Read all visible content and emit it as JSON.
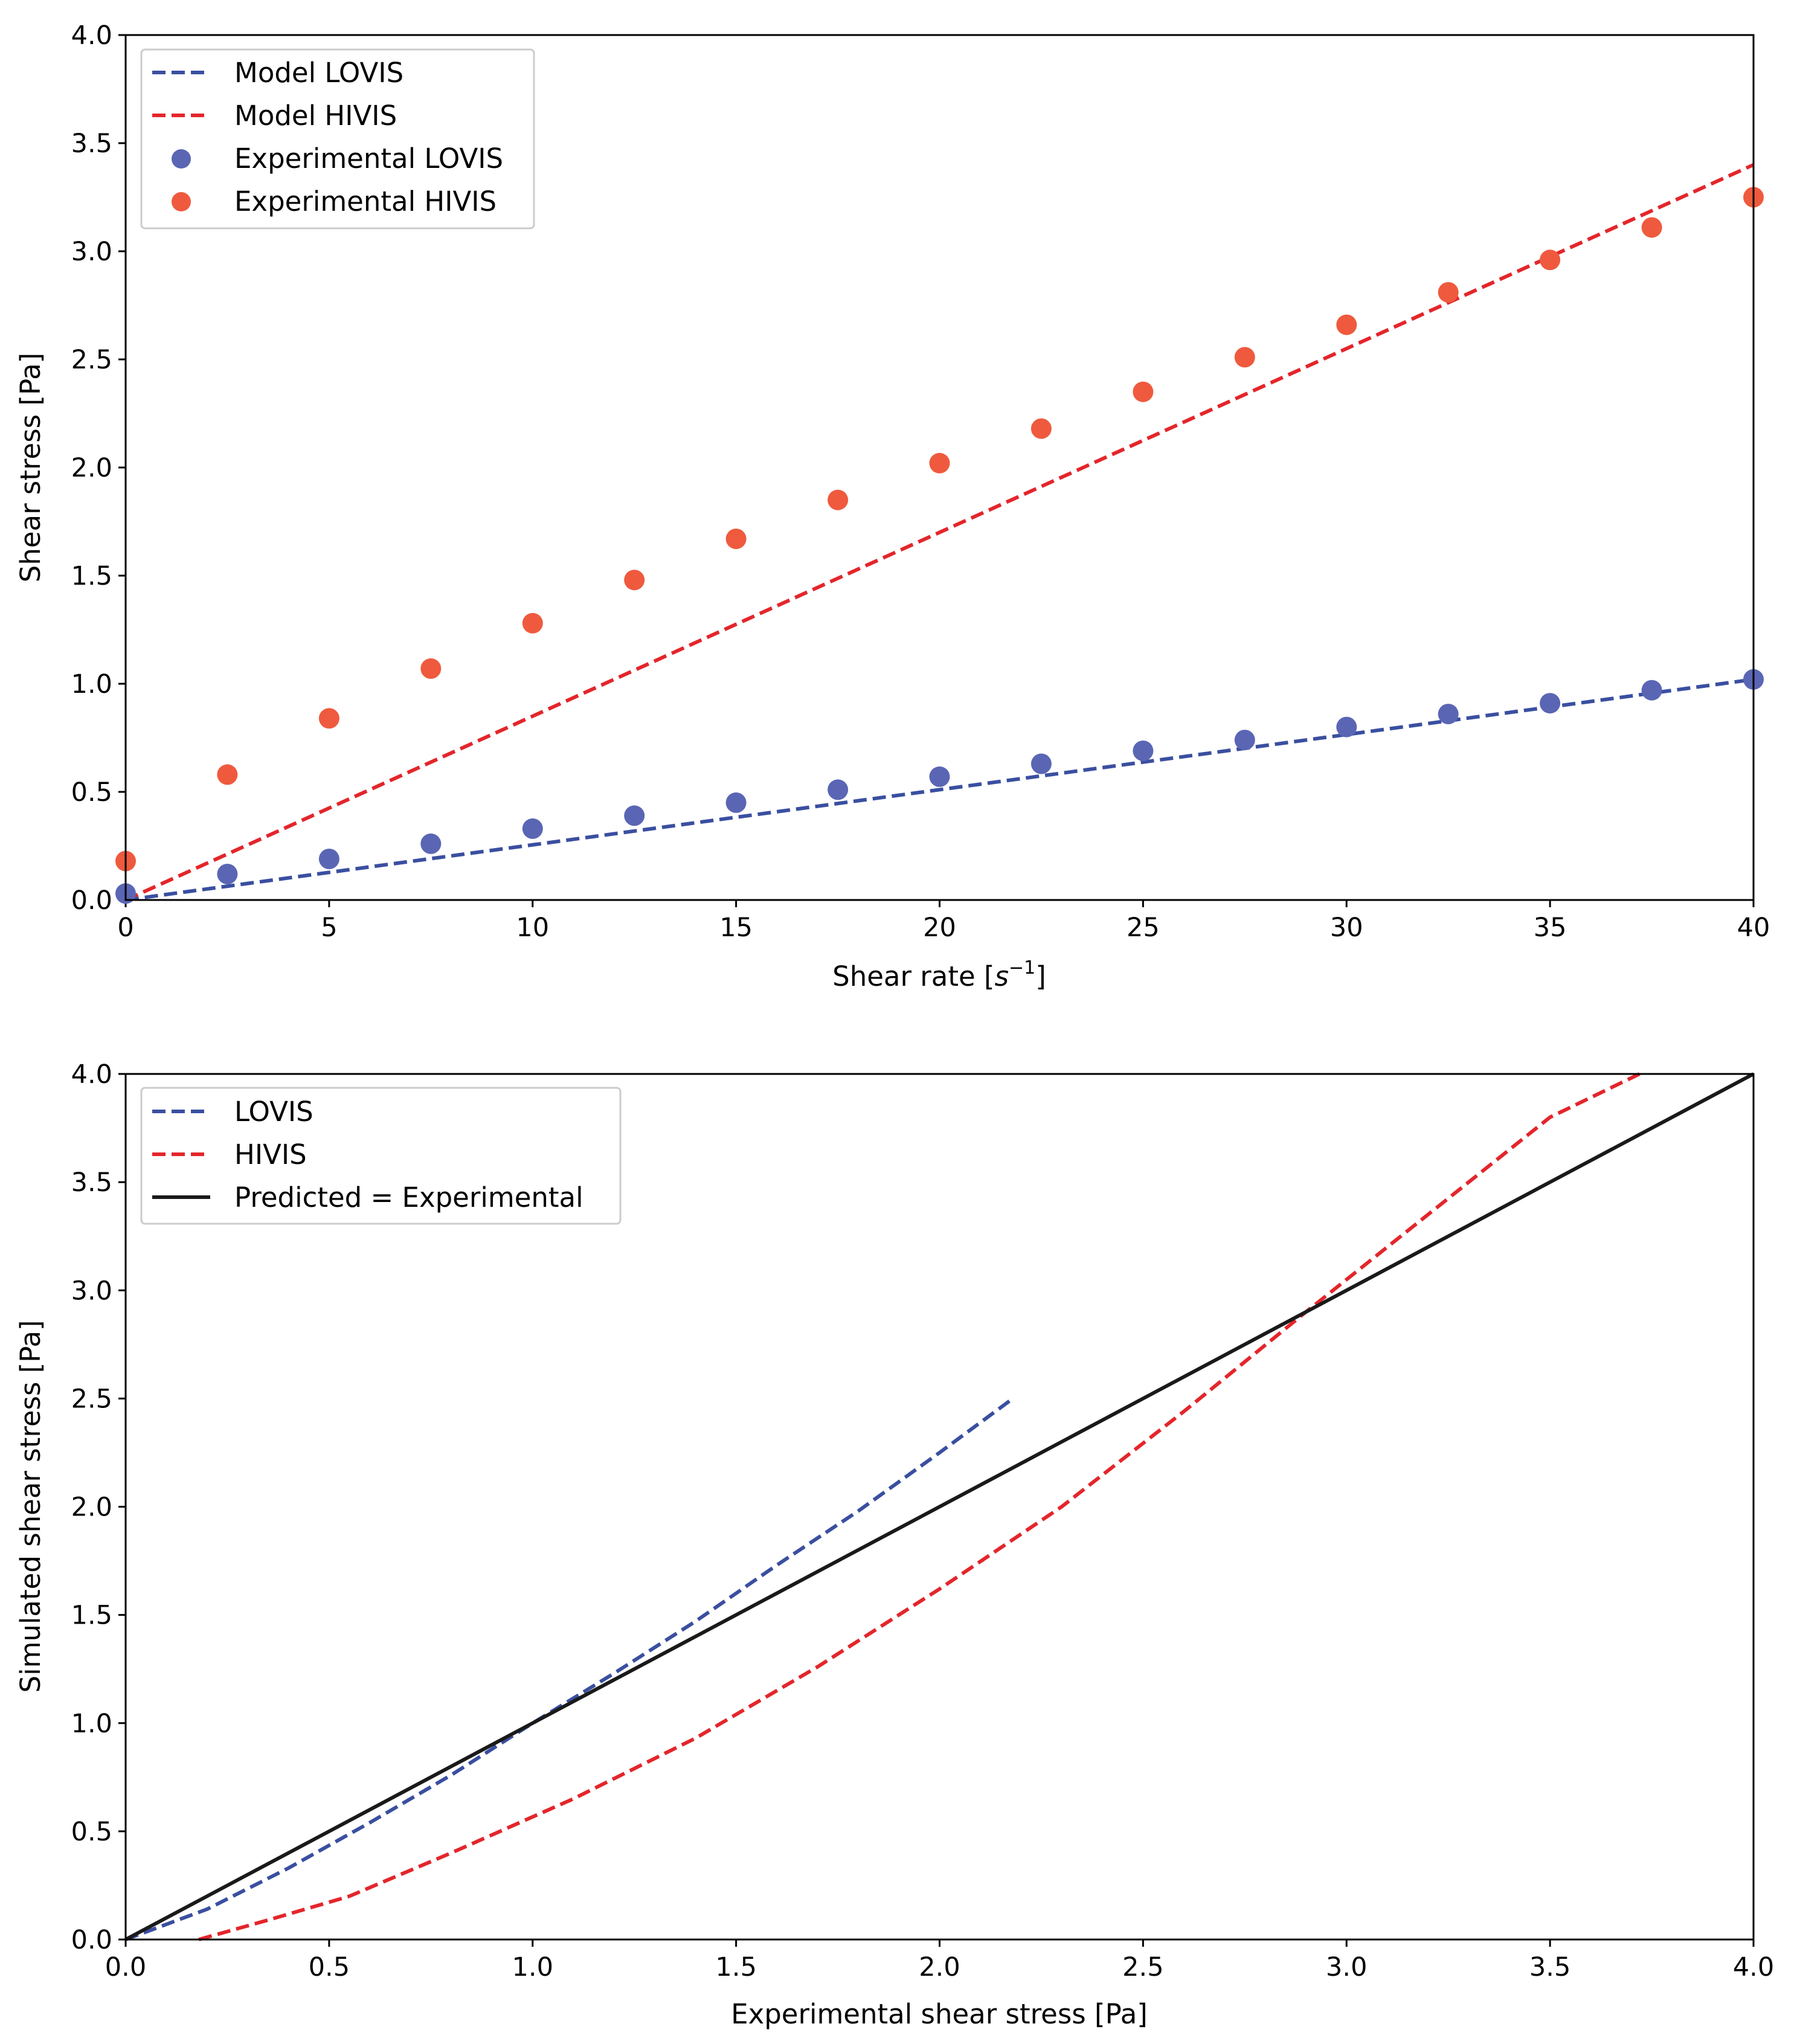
{
  "colors": {
    "lovis_line": "#3a4fa0",
    "hivis_line": "#e3262b",
    "lovis_points": "#5a66b4",
    "hivis_points": "#ef5a3e",
    "identity_line": "#1a1a1a"
  },
  "chart_data": [
    {
      "type": "line+scatter",
      "xlabel_prefix": "Shear rate [",
      "xlabel_sym": "s",
      "xlabel_sup": "−1",
      "xlabel_suffix": "]",
      "ylabel": "Shear stress [Pa]",
      "xlim": [
        0,
        40
      ],
      "ylim": [
        0,
        4
      ],
      "xticks": [
        0,
        5,
        10,
        15,
        20,
        25,
        30,
        35,
        40
      ],
      "xtick_labels": [
        "0",
        "5",
        "10",
        "15",
        "20",
        "25",
        "30",
        "35",
        "40"
      ],
      "yticks": [
        0,
        0.5,
        1.0,
        1.5,
        2.0,
        2.5,
        3.0,
        3.5,
        4.0
      ],
      "ytick_labels": [
        "0.0",
        "0.5",
        "1.0",
        "1.5",
        "2.0",
        "2.5",
        "3.0",
        "3.5",
        "4.0"
      ],
      "legend_position": "top-left",
      "series": [
        {
          "name": "Model LOVIS",
          "kind": "line",
          "style": "dashed",
          "color_key": "lovis_line",
          "x": [
            0,
            40
          ],
          "y": [
            0,
            1.02
          ]
        },
        {
          "name": "Model HIVIS",
          "kind": "line",
          "style": "dashed",
          "color_key": "hivis_line",
          "x": [
            0,
            40
          ],
          "y": [
            0,
            3.4
          ]
        },
        {
          "name": "Experimental LOVIS",
          "kind": "scatter",
          "color_key": "lovis_points",
          "x": [
            0,
            2.5,
            5,
            7.5,
            10,
            12.5,
            15,
            17.5,
            20,
            22.5,
            25,
            27.5,
            30,
            32.5,
            35,
            37.5,
            40
          ],
          "y": [
            0.03,
            0.12,
            0.19,
            0.26,
            0.33,
            0.39,
            0.45,
            0.51,
            0.57,
            0.63,
            0.69,
            0.74,
            0.8,
            0.86,
            0.91,
            0.97,
            1.02
          ]
        },
        {
          "name": "Experimental HIVIS",
          "kind": "scatter",
          "color_key": "hivis_points",
          "x": [
            0,
            2.5,
            5,
            7.5,
            10,
            12.5,
            15,
            17.5,
            20,
            22.5,
            25,
            27.5,
            30,
            32.5,
            35,
            37.5,
            40
          ],
          "y": [
            0.18,
            0.58,
            0.84,
            1.07,
            1.28,
            1.48,
            1.67,
            1.85,
            2.02,
            2.18,
            2.35,
            2.51,
            2.66,
            2.81,
            2.96,
            3.11,
            3.25
          ]
        }
      ]
    },
    {
      "type": "line",
      "xlabel": "Experimental shear stress [Pa]",
      "ylabel": "Simulated shear stress [Pa]",
      "xlim": [
        0,
        4
      ],
      "ylim": [
        0,
        4
      ],
      "xticks": [
        0,
        0.5,
        1.0,
        1.5,
        2.0,
        2.5,
        3.0,
        3.5,
        4.0
      ],
      "xtick_labels": [
        "0.0",
        "0.5",
        "1.0",
        "1.5",
        "2.0",
        "2.5",
        "3.0",
        "3.5",
        "4.0"
      ],
      "yticks": [
        0,
        0.5,
        1.0,
        1.5,
        2.0,
        2.5,
        3.0,
        3.5,
        4.0
      ],
      "ytick_labels": [
        "0.0",
        "0.5",
        "1.0",
        "1.5",
        "2.0",
        "2.5",
        "3.0",
        "3.5",
        "4.0"
      ],
      "legend_position": "top-left",
      "series": [
        {
          "name": "LOVIS",
          "kind": "line",
          "style": "dashed",
          "color_key": "lovis_line",
          "x": [
            0.0,
            0.2,
            0.4,
            0.6,
            0.8,
            1.0,
            1.2,
            1.4,
            1.6,
            1.8,
            2.0,
            2.18
          ],
          "y": [
            0.0,
            0.14,
            0.33,
            0.54,
            0.76,
            1.0,
            1.23,
            1.47,
            1.73,
            1.98,
            2.25,
            2.5
          ]
        },
        {
          "name": "HIVIS",
          "kind": "line",
          "style": "dashed",
          "color_key": "hivis_line",
          "x": [
            0.18,
            0.35,
            0.55,
            0.8,
            1.1,
            1.4,
            1.7,
            2.0,
            2.3,
            2.6,
            2.9,
            3.2,
            3.5,
            3.72
          ],
          "y": [
            0.0,
            0.09,
            0.2,
            0.4,
            0.65,
            0.93,
            1.26,
            1.62,
            2.0,
            2.44,
            2.9,
            3.35,
            3.8,
            4.0
          ]
        },
        {
          "name": "Predicted = Experimental",
          "kind": "line",
          "style": "solid",
          "color_key": "identity_line",
          "x": [
            0,
            4
          ],
          "y": [
            0,
            4
          ]
        }
      ]
    }
  ]
}
